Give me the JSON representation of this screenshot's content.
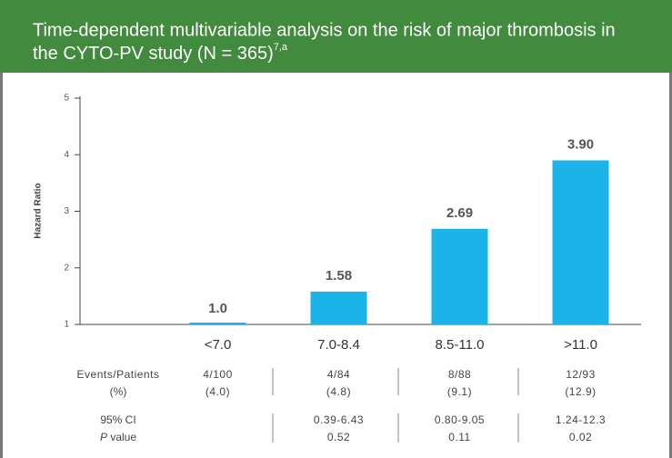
{
  "header": {
    "title_lines": [
      "Time-dependent multivariable analysis on the risk of major thrombosis in",
      "the CYTO-PV study (N = 365)"
    ],
    "superscript": "7,a"
  },
  "chart_data": {
    "type": "bar",
    "y_label": "Hazard Ratio",
    "categories": [
      "<7.0",
      "7.0-8.4",
      "8.5-11.0",
      ">11.0"
    ],
    "values": [
      1,
      1.58,
      2.69,
      3.9
    ],
    "value_labels": [
      "1.0",
      "1.58",
      "2.69",
      "3.90"
    ],
    "color": "#1cb3e8",
    "ylim": [
      1,
      5
    ],
    "yticks": [
      1,
      2,
      3,
      4,
      5
    ],
    "grid": false
  },
  "table": {
    "row_labels": {
      "events": "Events/Patients",
      "percent": "(%)",
      "ci": "95% CI",
      "p_italic": "P",
      "p_rest": " value"
    },
    "columns": [
      {
        "events": "4/100",
        "percent": "(4.0)"
      },
      {
        "events": "4/84",
        "percent": "(4.8)",
        "ci": "0.39-6.43",
        "p": "0.52"
      },
      {
        "events": "8/88",
        "percent": "(9.1)",
        "ci": "0.80-9.05",
        "p": "0.11"
      },
      {
        "events": "12/93",
        "percent": "(12.9)",
        "ci": "1.24-12.3",
        "p": "0.02"
      }
    ]
  }
}
